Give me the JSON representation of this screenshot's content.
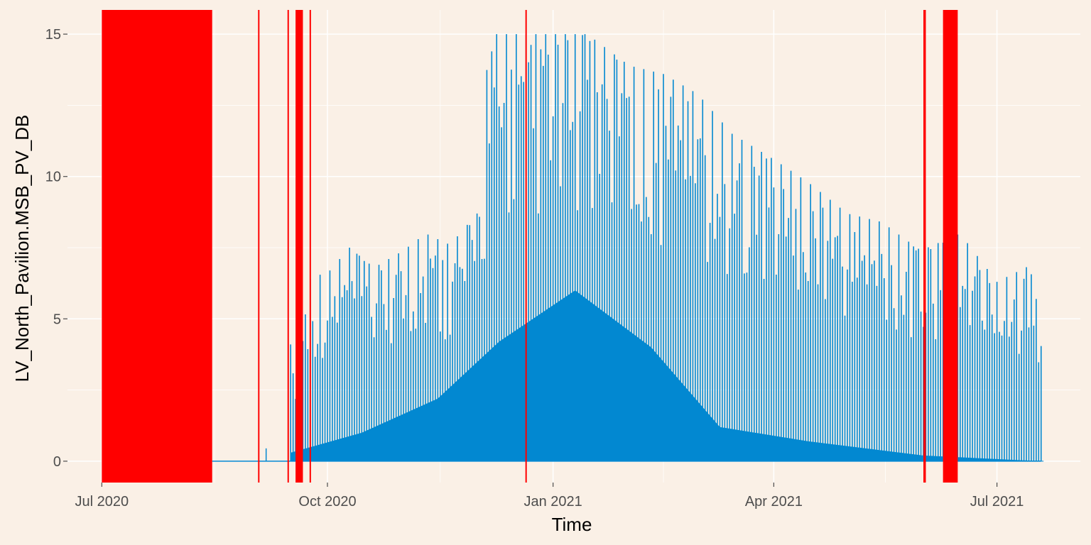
{
  "chart_data": {
    "type": "line",
    "title": "",
    "xlabel": "Time",
    "ylabel": "LV_North_Pavilion.MSB_PV_DB",
    "x_ticks": [
      "Jul 2020",
      "Oct 2020",
      "Jan 2021",
      "Apr 2021",
      "Jul 2021"
    ],
    "x_tick_dates": [
      "2020-07-01",
      "2020-10-01",
      "2021-01-01",
      "2021-04-01",
      "2021-07-01"
    ],
    "xlim": [
      "2020-06-17",
      "2021-08-04"
    ],
    "y_ticks": [
      "0",
      "5",
      "10",
      "15"
    ],
    "ylim": [
      -0.75,
      15.85
    ],
    "grid": true,
    "colors": {
      "series": "#0288D1",
      "highlight": "#FF0000",
      "panel": "#FAF0E6",
      "grid": "#FFFFFF"
    },
    "highlight_regions": [
      {
        "start": "2020-07-01",
        "end": "2020-08-15"
      },
      {
        "start": "2020-09-03",
        "end": "2020-09-03"
      },
      {
        "start": "2020-09-15",
        "end": "2020-09-15"
      },
      {
        "start": "2020-09-18",
        "end": "2020-09-21"
      },
      {
        "start": "2020-09-24",
        "end": "2020-09-24"
      },
      {
        "start": "2020-12-21",
        "end": "2020-12-21"
      },
      {
        "start": "2021-06-01",
        "end": "2021-06-02"
      },
      {
        "start": "2021-06-09",
        "end": "2021-06-15"
      }
    ],
    "series": [
      {
        "values_description_free": true,
        "daily_peaks": [
          [
            "2020-09-16",
            4.1
          ],
          [
            "2020-09-17",
            3.2
          ],
          [
            "2020-09-22",
            6.2
          ],
          [
            "2020-09-25",
            6.5
          ],
          [
            "2020-10-01",
            6.6
          ],
          [
            "2020-10-10",
            7.5
          ],
          [
            "2020-10-20",
            6.8
          ],
          [
            "2020-11-01",
            7.4
          ],
          [
            "2020-11-10",
            8.0
          ],
          [
            "2020-11-20",
            7.6
          ],
          [
            "2020-12-01",
            8.7
          ],
          [
            "2020-12-06",
            15.0
          ],
          [
            "2020-12-15",
            15.0
          ],
          [
            "2020-12-25",
            15.0
          ],
          [
            "2021-01-05",
            15.0
          ],
          [
            "2021-01-15",
            15.0
          ],
          [
            "2021-02-01",
            13.9
          ],
          [
            "2021-02-15",
            13.6
          ],
          [
            "2021-03-01",
            12.9
          ],
          [
            "2021-03-15",
            11.5
          ],
          [
            "2021-04-01",
            10.6
          ],
          [
            "2021-04-15",
            9.8
          ],
          [
            "2021-05-01",
            8.7
          ],
          [
            "2021-05-15",
            8.4
          ],
          [
            "2021-05-31",
            7.4
          ],
          [
            "2021-06-16",
            8.0
          ],
          [
            "2021-07-01",
            6.3
          ],
          [
            "2021-07-15",
            6.9
          ],
          [
            "2021-07-19",
            4.5
          ]
        ],
        "night_floor": [
          [
            "2020-09-16",
            0.3
          ],
          [
            "2020-10-15",
            1.0
          ],
          [
            "2020-11-15",
            2.2
          ],
          [
            "2020-12-10",
            4.2
          ],
          [
            "2021-01-10",
            6.0
          ],
          [
            "2021-02-10",
            4.0
          ],
          [
            "2021-03-10",
            1.2
          ],
          [
            "2021-04-15",
            0.7
          ],
          [
            "2021-06-01",
            0.2
          ],
          [
            "2021-07-19",
            0.0
          ]
        ],
        "baseline_segments": [
          {
            "start": "2020-08-15",
            "end": "2020-09-16",
            "value": 0.0
          },
          {
            "start": "2020-09-06",
            "end": "2020-09-06",
            "value": 0.45
          }
        ]
      }
    ]
  }
}
